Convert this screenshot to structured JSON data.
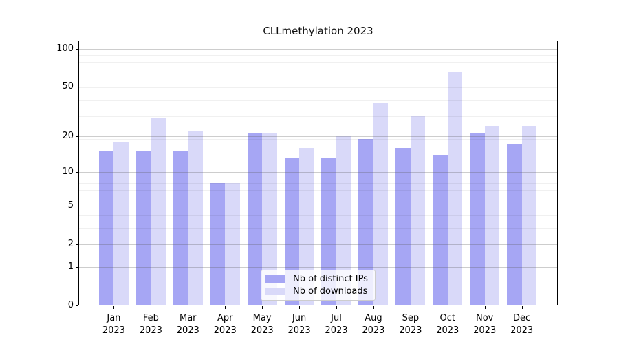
{
  "title": "CLLmethylation 2023",
  "colors": {
    "ips_bar": "#a6a6f4",
    "downloads_bar": "#d9d9f9",
    "axis": "#000000",
    "legend_border": "#cccccc"
  },
  "chart_data": {
    "type": "bar",
    "title": "CLLmethylation 2023",
    "scale": "log(value+1)",
    "categories": [
      "Jan",
      "Feb",
      "Mar",
      "Apr",
      "May",
      "Jun",
      "Jul",
      "Aug",
      "Sep",
      "Oct",
      "Nov",
      "Dec"
    ],
    "category_year": "2023",
    "series": [
      {
        "name": "Nb of distinct IPs",
        "color": "#a6a6f4",
        "values": [
          15,
          15,
          15,
          8,
          21,
          13,
          13,
          19,
          16,
          14,
          21,
          17
        ]
      },
      {
        "name": "Nb of downloads",
        "color": "#d9d9f9",
        "values": [
          18,
          28,
          22,
          8,
          21,
          16,
          20,
          37,
          29,
          66,
          24,
          24
        ]
      }
    ],
    "xlabel": "",
    "ylabel": "",
    "y_ticks": [
      0,
      1,
      2,
      5,
      10,
      20,
      50,
      100
    ],
    "y_minor_gridlines": [
      3,
      4,
      6,
      7,
      8,
      9,
      19,
      29,
      39,
      49,
      59,
      69,
      79,
      89
    ],
    "ylim": [
      0,
      116
    ],
    "grid": true,
    "grid_over_bars": true,
    "legend_position": "lower center"
  }
}
